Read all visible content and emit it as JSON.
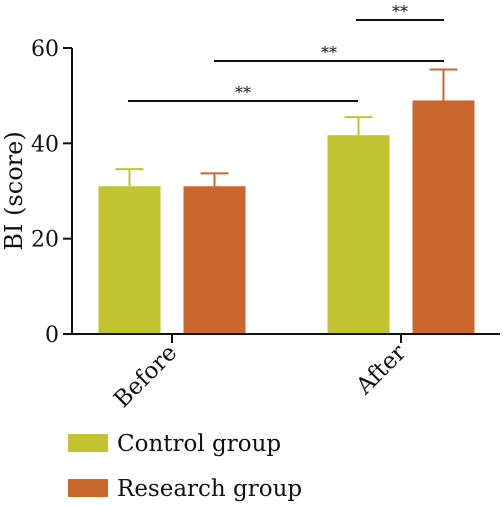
{
  "chart_data": {
    "type": "bar",
    "title": "",
    "xlabel": "",
    "ylabel": "BI (score)",
    "ylim": [
      0,
      60
    ],
    "yticks": [
      0,
      20,
      40,
      60
    ],
    "grid": false,
    "categories": [
      "Before",
      "After"
    ],
    "series": [
      {
        "name": "Control group",
        "color": "#c2c330",
        "values": [
          31,
          41.7
        ],
        "errors": [
          3.6,
          3.8
        ]
      },
      {
        "name": "Research group",
        "color": "#c8662b",
        "values": [
          31,
          49
        ],
        "errors": [
          2.7,
          6.5
        ]
      }
    ],
    "significance": [
      {
        "label": "**",
        "from": "Before",
        "to": "After · Control group"
      },
      {
        "label": "**",
        "from": "Before · Research group",
        "to": "After · Control group"
      },
      {
        "label": "**",
        "from": "After · Control group",
        "to": "After · Research group"
      }
    ],
    "legend_position": "bottom-left"
  }
}
